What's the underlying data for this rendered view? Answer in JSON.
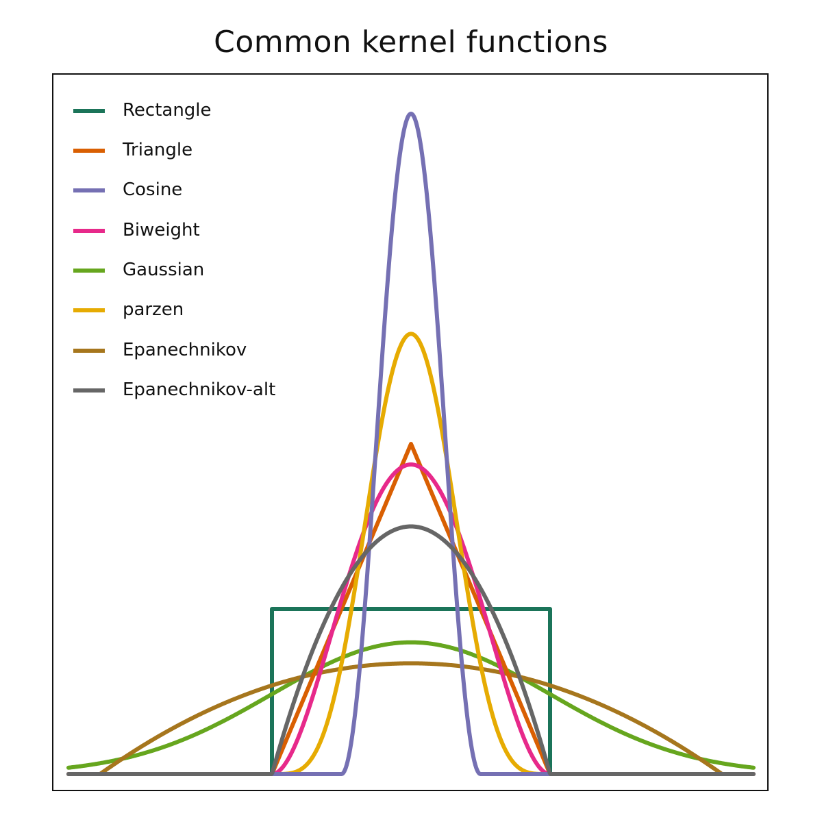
{
  "chart_data": {
    "type": "line",
    "title": "Common kernel functions",
    "xlabel": "",
    "ylabel": "",
    "xlim": [
      -2.46,
      2.46
    ],
    "ylim": [
      0,
      2.0
    ],
    "grid": false,
    "axes_ticks": false,
    "legend_position": "upper left",
    "series": [
      {
        "name": "Rectangle",
        "color": "#1b7459",
        "kind": "rectangular",
        "support": [
          -1,
          1
        ],
        "peak": 0.5
      },
      {
        "name": "Triangle",
        "color": "#d95f02",
        "kind": "triangular",
        "support": [
          -1,
          1
        ],
        "peak": 1.0
      },
      {
        "name": "Cosine",
        "color": "#7570b3",
        "kind": "cosine",
        "support": [
          -0.5,
          0.5
        ],
        "peak": 2.0
      },
      {
        "name": "Biweight",
        "color": "#e7298a",
        "kind": "biweight",
        "support": [
          -1,
          1
        ],
        "peak": 0.9375
      },
      {
        "name": "Gaussian",
        "color": "#66a61e",
        "kind": "gaussian",
        "support": [
          -2.46,
          2.46
        ],
        "peak": 0.399
      },
      {
        "name": "parzen",
        "color": "#e6ab02",
        "kind": "parzen",
        "support": [
          -1,
          1
        ],
        "peak": 1.333
      },
      {
        "name": "Epanechnikov",
        "color": "#a6761d",
        "kind": "epanechnikov-scaled",
        "support": [
          -2.236,
          2.236
        ],
        "peak": 0.335
      },
      {
        "name": "Epanechnikov-alt",
        "color": "#666666",
        "kind": "epanechnikov",
        "support": [
          -1,
          1
        ],
        "peak": 0.75
      }
    ]
  },
  "page": {
    "title": "Common kernel functions"
  },
  "legend": {
    "items": [
      {
        "label": "Rectangle",
        "color": "#1b7459"
      },
      {
        "label": "Triangle",
        "color": "#d95f02"
      },
      {
        "label": "Cosine",
        "color": "#7570b3"
      },
      {
        "label": "Biweight",
        "color": "#e7298a"
      },
      {
        "label": "Gaussian",
        "color": "#66a61e"
      },
      {
        "label": "parzen",
        "color": "#e6ab02"
      },
      {
        "label": "Epanechnikov",
        "color": "#a6761d"
      },
      {
        "label": "Epanechnikov-alt",
        "color": "#666666"
      }
    ]
  }
}
